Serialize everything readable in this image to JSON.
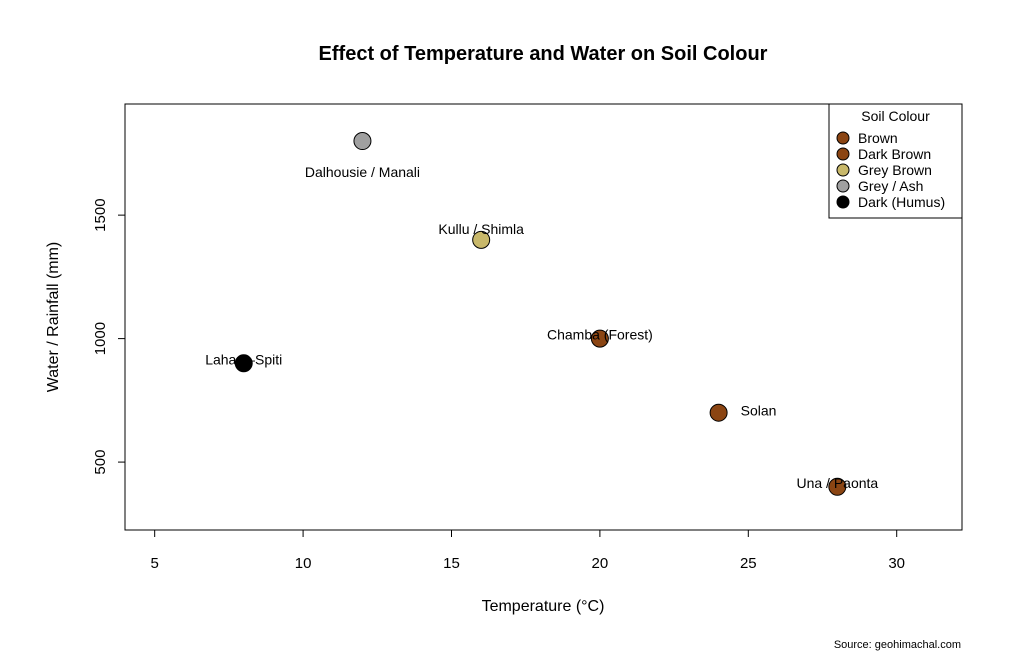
{
  "chart_data": {
    "type": "scatter",
    "title": "Effect of Temperature and Water on Soil Colour",
    "xlabel": "Temperature (°C)",
    "ylabel": "Water / Rainfall (mm)",
    "xlim": [
      4,
      32.2
    ],
    "ylim": [
      225,
      1950
    ],
    "xticks": [
      5,
      10,
      15,
      20,
      25,
      30
    ],
    "yticks": [
      500,
      1000,
      1500
    ],
    "points": [
      {
        "label": "Lahaul–Spiti",
        "x": 8,
        "y": 900,
        "category": "Dark (Humus)",
        "label_pos": "center"
      },
      {
        "label": "Dalhousie / Manali",
        "x": 12,
        "y": 1800,
        "category": "Grey / Ash",
        "label_pos": "below"
      },
      {
        "label": "Kullu / Shimla",
        "x": 16,
        "y": 1400,
        "category": "Grey Brown",
        "label_pos": "above"
      },
      {
        "label": "Chamba (Forest)",
        "x": 20,
        "y": 1000,
        "category": "Dark Brown",
        "label_pos": "center"
      },
      {
        "label": "Solan",
        "x": 24,
        "y": 700,
        "category": "Brown",
        "label_pos": "right"
      },
      {
        "label": "Una / Paonta",
        "x": 28,
        "y": 400,
        "category": "Brown",
        "label_pos": "center"
      }
    ],
    "legend": {
      "title": "Soil Colour",
      "position": "top-right",
      "entries": [
        {
          "label": "Brown",
          "color": "#8B4513"
        },
        {
          "label": "Dark Brown",
          "color": "#8B4513"
        },
        {
          "label": "Grey Brown",
          "color": "#C8B86A"
        },
        {
          "label": "Grey / Ash",
          "color": "#A0A0A0"
        },
        {
          "label": "Dark (Humus)",
          "color": "#000000"
        }
      ]
    },
    "source": "Source: geohimachal.com"
  }
}
